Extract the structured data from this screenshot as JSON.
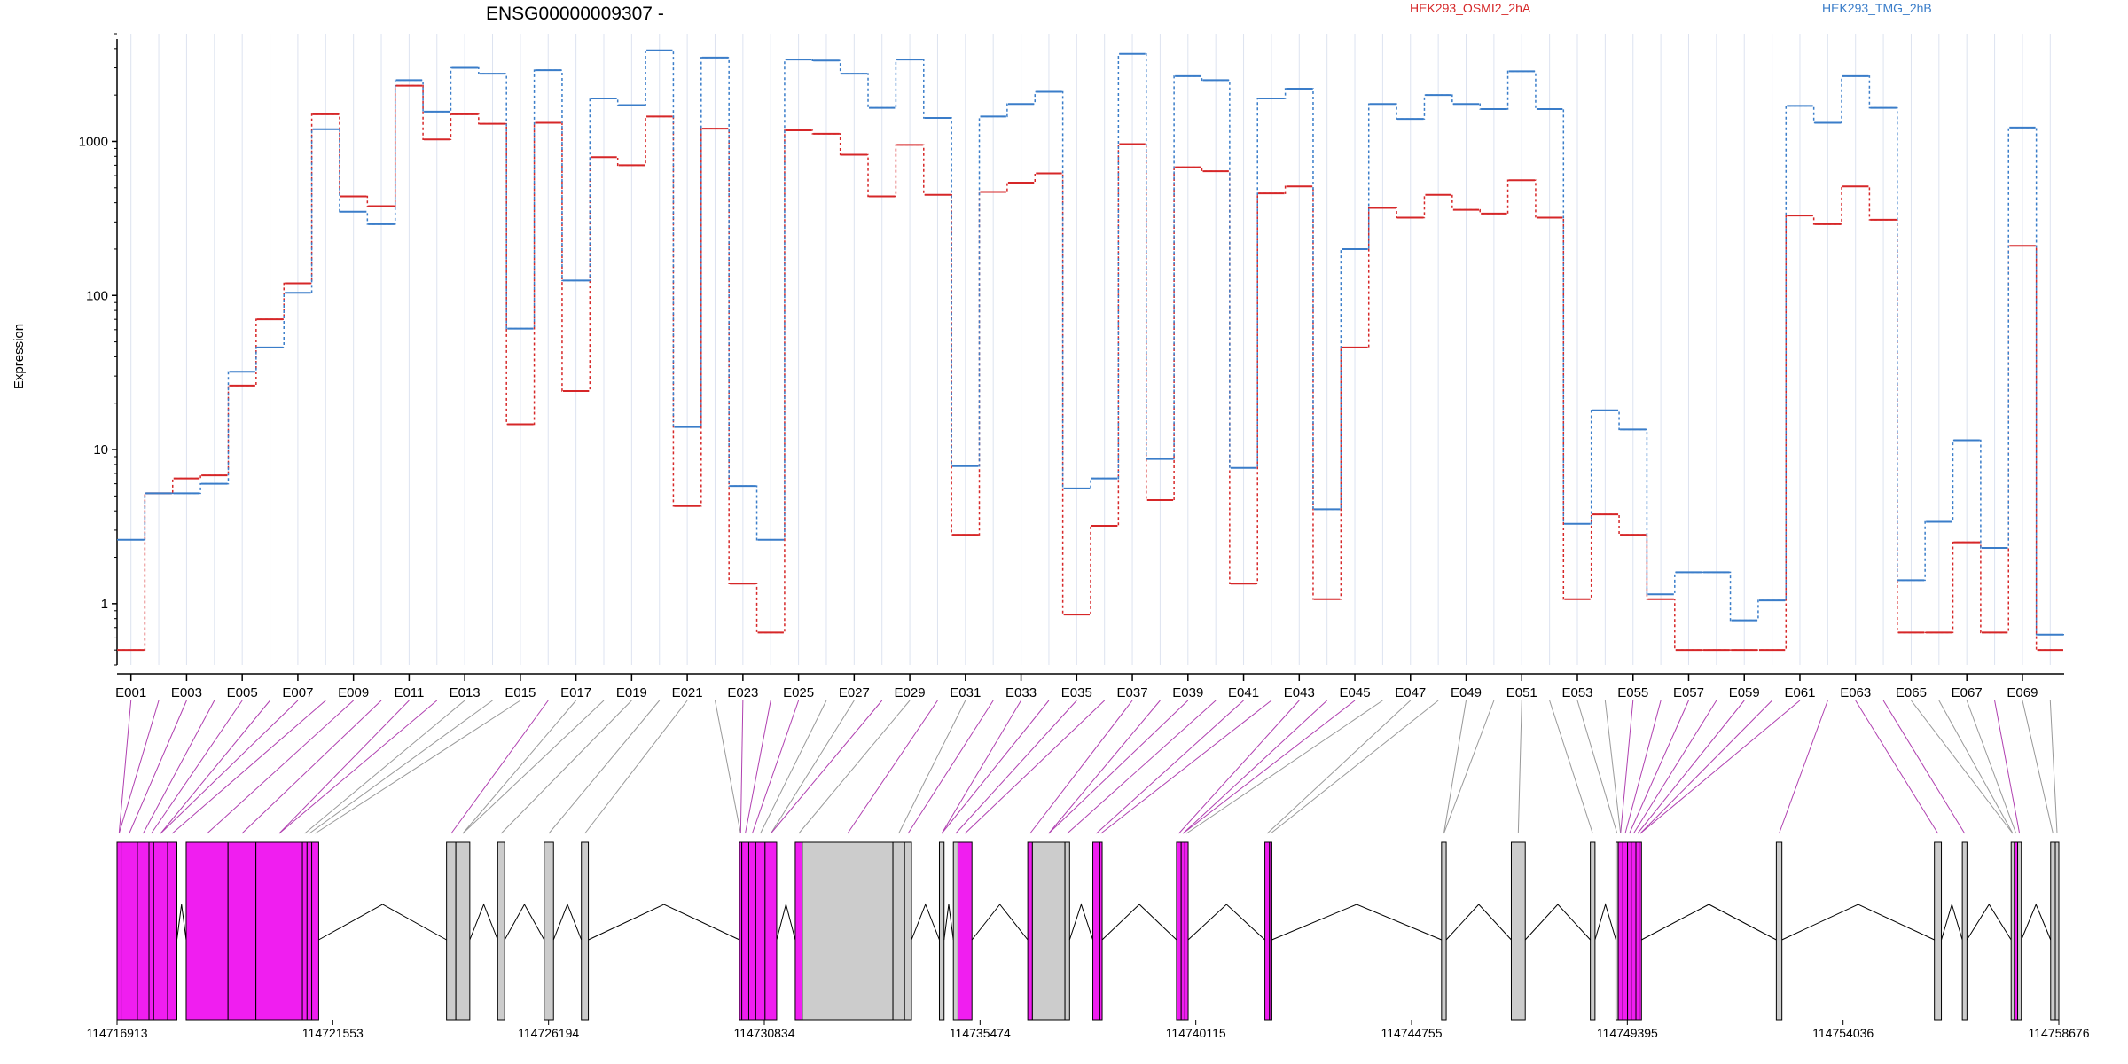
{
  "chart_data": {
    "type": "line",
    "title": "ENSG00000009307 -",
    "ylabel": "Expression",
    "yscale": "log",
    "ylim": [
      0.4,
      5000
    ],
    "y_ticks": [
      "1",
      "10",
      "100",
      "1000"
    ],
    "series": [
      {
        "name": "HEK293_OSMI2_2hA",
        "color": "#d62728",
        "values": [
          0.5,
          5.2,
          6.5,
          6.8,
          26,
          70,
          120,
          1500,
          440,
          380,
          2300,
          1030,
          1500,
          1300,
          14.6,
          1320,
          24,
          790,
          700,
          1450,
          4.3,
          1210,
          1.35,
          0.65,
          1180,
          1120,
          820,
          440,
          950,
          450,
          2.8,
          470,
          540,
          620,
          0.85,
          3.2,
          960,
          4.7,
          680,
          640,
          1.35,
          460,
          510,
          1.07,
          46,
          370,
          320,
          450,
          360,
          340,
          560,
          320,
          1.07,
          3.8,
          2.8,
          1.07,
          0.5,
          0.5,
          0.5,
          0.5,
          330,
          290,
          510,
          310,
          0.65,
          0.65,
          2.5,
          0.65,
          210,
          0.5
        ]
      },
      {
        "name": "HEK293_TMG_2hB",
        "color": "#3a7dc9",
        "values": [
          2.6,
          5.2,
          5.2,
          6,
          32,
          46,
          104,
          1200,
          350,
          290,
          2500,
          1560,
          3000,
          2750,
          61,
          2900,
          125,
          1900,
          1720,
          3900,
          14,
          3500,
          5.8,
          2.6,
          3400,
          3350,
          2750,
          1650,
          3400,
          1420,
          7.8,
          1450,
          1750,
          2100,
          5.6,
          6.5,
          3700,
          8.7,
          2650,
          2500,
          7.6,
          1900,
          2200,
          4.1,
          200,
          1750,
          1400,
          2000,
          1750,
          1620,
          2850,
          1620,
          3.3,
          18,
          13.5,
          1.15,
          1.6,
          1.6,
          0.78,
          1.05,
          1700,
          1320,
          2650,
          1650,
          1.42,
          3.4,
          11.5,
          2.3,
          1230,
          0.63
        ]
      }
    ],
    "exon_labels": [
      "E001",
      "E003",
      "E005",
      "E007",
      "E009",
      "E011",
      "E013",
      "E015",
      "E017",
      "E019",
      "E021",
      "E023",
      "E025",
      "E027",
      "E029",
      "E031",
      "E033",
      "E035",
      "E037",
      "E039",
      "E041",
      "E043",
      "E045",
      "E047",
      "E049",
      "E051",
      "E053",
      "E055",
      "E057",
      "E059",
      "E061",
      "E063",
      "E065",
      "E067",
      "E069"
    ],
    "genomic_axis": {
      "range": [
        114716913,
        114758676
      ],
      "tick_labels": [
        "114716913",
        "114721553",
        "114726194",
        "114730834",
        "114735474",
        "114740115",
        "114744755",
        "114749395",
        "114754036",
        "114758676"
      ]
    },
    "significant_exons": [
      "E001",
      "E002",
      "E003",
      "E004",
      "E005",
      "E006",
      "E007",
      "E008",
      "E009",
      "E010",
      "E011",
      "E012",
      "E016",
      "E023",
      "E024",
      "E025",
      "E028",
      "E030",
      "E032",
      "E033",
      "E034",
      "E035",
      "E036",
      "E037",
      "E038",
      "E039",
      "E040",
      "E041",
      "E042",
      "E043",
      "E044",
      "E045",
      "E055",
      "E056",
      "E057",
      "E058",
      "E059",
      "E060",
      "E061",
      "E062",
      "E063",
      "E064",
      "E068"
    ],
    "colors": {
      "significant_exon": "#f01ef0",
      "normal_exon": "#cccccc",
      "significant_link": "#b040b0",
      "normal_link": "#999999",
      "grid": "#dde3f0"
    }
  }
}
